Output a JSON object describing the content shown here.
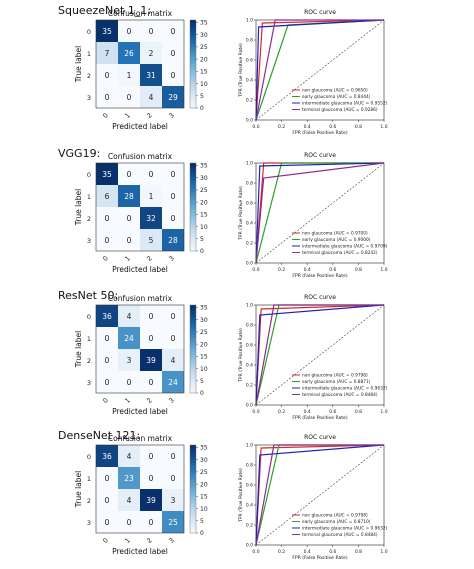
{
  "chart_data": [
    {
      "model": "SqueezeNet 1_1:",
      "confusion_matrix": {
        "type": "heatmap",
        "title": "Confusion matrix",
        "xlabel": "Predicted label",
        "ylabel": "True label",
        "labels": [
          "0",
          "1",
          "2",
          "3"
        ],
        "matrix": [
          [
            35,
            0,
            0,
            0
          ],
          [
            7,
            26,
            2,
            0
          ],
          [
            0,
            1,
            31,
            0
          ],
          [
            0,
            0,
            4,
            29
          ]
        ],
        "colorbar_ticks": [
          "35",
          "30",
          "25",
          "20",
          "15",
          "10",
          "5",
          "0"
        ],
        "vmax": 35
      },
      "roc": {
        "type": "line",
        "title": "ROC curve",
        "xlabel": "FPR (False Positive Rate)",
        "ylabel": "TPR (True Positive Rate)",
        "xticks": [
          "0.0",
          "0.2",
          "0.4",
          "0.6",
          "0.8",
          "1.0"
        ],
        "yticks": [
          "0.0",
          "0.2",
          "0.4",
          "0.6",
          "0.8",
          "1.0"
        ],
        "legend_position": "lower right",
        "series": [
          {
            "name": "non glaucoma (AUC = 0.9650)",
            "color": "#d62728",
            "points": [
              [
                0,
                0
              ],
              [
                0.05,
                0.97
              ],
              [
                1,
                1
              ]
            ]
          },
          {
            "name": "early glaucoma (AUC = 0.8444)",
            "color": "#2ca02c",
            "points": [
              [
                0,
                0
              ],
              [
                0.25,
                0.95
              ],
              [
                1,
                1
              ]
            ]
          },
          {
            "name": "intermediate glaucoma (AUC = 0.9552)",
            "color": "#1f1fbf",
            "points": [
              [
                0,
                0
              ],
              [
                0.02,
                0.93
              ],
              [
                1,
                1
              ]
            ]
          },
          {
            "name": "terminal glaucoma (AUC = 0.9286)",
            "color": "#8c2d8c",
            "points": [
              [
                0,
                0
              ],
              [
                0.15,
                1.0
              ],
              [
                1,
                1
              ]
            ]
          }
        ]
      }
    },
    {
      "model": "VGG19:",
      "confusion_matrix": {
        "type": "heatmap",
        "title": "Confusion matrix",
        "xlabel": "Predicted label",
        "ylabel": "True label",
        "labels": [
          "0",
          "1",
          "2",
          "3"
        ],
        "matrix": [
          [
            35,
            0,
            0,
            0
          ],
          [
            6,
            28,
            1,
            0
          ],
          [
            0,
            0,
            32,
            0
          ],
          [
            0,
            0,
            5,
            28
          ]
        ],
        "colorbar_ticks": [
          "35",
          "30",
          "25",
          "20",
          "15",
          "10",
          "5",
          "0"
        ],
        "vmax": 35
      },
      "roc": {
        "type": "line",
        "title": "ROC curve",
        "xlabel": "FPR (False Positive Rate)",
        "ylabel": "TPR (True Positive Rate)",
        "xticks": [
          "0.0",
          "0.2",
          "0.4",
          "0.6",
          "0.8",
          "1.0"
        ],
        "yticks": [
          "0.0",
          "0.2",
          "0.4",
          "0.6",
          "0.8",
          "1.0"
        ],
        "legend_position": "lower right",
        "series": [
          {
            "name": "non glaucoma (AUC = 0.9700)",
            "color": "#d62728",
            "points": [
              [
                0,
                0
              ],
              [
                0.06,
                1.0
              ],
              [
                1,
                1
              ]
            ]
          },
          {
            "name": "early glaucoma (AUC = 0.9000)",
            "color": "#2ca02c",
            "points": [
              [
                0,
                0
              ],
              [
                0.2,
                1.0
              ],
              [
                1,
                1
              ]
            ]
          },
          {
            "name": "intermediate glaucoma (AUC = 0.9709)",
            "color": "#1f1fbf",
            "points": [
              [
                0,
                0
              ],
              [
                0.03,
                0.97
              ],
              [
                1,
                1
              ]
            ]
          },
          {
            "name": "terminal glaucoma (AUC = 0.8242)",
            "color": "#8c2d8c",
            "points": [
              [
                0,
                0
              ],
              [
                0.06,
                0.85
              ],
              [
                1,
                1
              ]
            ]
          }
        ]
      }
    },
    {
      "model": "ResNet 50:",
      "confusion_matrix": {
        "type": "heatmap",
        "title": "Confusion matrix",
        "xlabel": "Predicted label",
        "ylabel": "True label",
        "labels": [
          "0",
          "1",
          "2",
          "3"
        ],
        "matrix": [
          [
            36,
            4,
            0,
            0
          ],
          [
            0,
            24,
            0,
            0
          ],
          [
            0,
            3,
            39,
            4
          ],
          [
            0,
            0,
            0,
            24
          ]
        ],
        "colorbar_ticks": [
          "35",
          "30",
          "25",
          "20",
          "15",
          "10",
          "5",
          "0"
        ],
        "vmax": 39
      },
      "roc": {
        "type": "line",
        "title": "ROC curve",
        "xlabel": "FPR (False Positive Rate)",
        "ylabel": "TPR (True Positive Rate)",
        "xticks": [
          "0.0",
          "0.2",
          "0.4",
          "0.6",
          "0.8",
          "1.0"
        ],
        "yticks": [
          "0.0",
          "0.2",
          "0.4",
          "0.6",
          "0.8",
          "1.0"
        ],
        "legend_position": "lower right",
        "series": [
          {
            "name": "non glaucoma (AUC = 0.9798)",
            "color": "#d62728",
            "points": [
              [
                0,
                0
              ],
              [
                0.04,
                0.96
              ],
              [
                1,
                1
              ]
            ]
          },
          {
            "name": "early glaucoma (AUC = 0.8871)",
            "color": "#2ca02c",
            "points": [
              [
                0,
                0
              ],
              [
                0.18,
                1.0
              ],
              [
                1,
                1
              ]
            ]
          },
          {
            "name": "intermediate glaucoma (AUC = 0.9632)",
            "color": "#1f1fbf",
            "points": [
              [
                0,
                0
              ],
              [
                0.03,
                0.9
              ],
              [
                1,
                1
              ]
            ]
          },
          {
            "name": "terminal glaucoma (AUC = 0.8484)",
            "color": "#8c2d8c",
            "points": [
              [
                0,
                0
              ],
              [
                0.14,
                1.0
              ],
              [
                1,
                1
              ]
            ]
          }
        ]
      }
    },
    {
      "model": "DenseNet 121:",
      "confusion_matrix": {
        "type": "heatmap",
        "title": "Confusion matrix",
        "xlabel": "Predicted label",
        "ylabel": "True label",
        "labels": [
          "0",
          "1",
          "2",
          "3"
        ],
        "matrix": [
          [
            36,
            4,
            0,
            0
          ],
          [
            0,
            23,
            0,
            0
          ],
          [
            0,
            4,
            39,
            3
          ],
          [
            0,
            0,
            0,
            25
          ]
        ],
        "colorbar_ticks": [
          "35",
          "30",
          "25",
          "20",
          "15",
          "10",
          "5",
          "0"
        ],
        "vmax": 39
      },
      "roc": {
        "type": "line",
        "title": "ROC curve",
        "xlabel": "FPR (False Positive Rate)",
        "ylabel": "TPR (True Positive Rate)",
        "xticks": [
          "0.0",
          "0.2",
          "0.4",
          "0.6",
          "0.8",
          "1.0"
        ],
        "yticks": [
          "0.0",
          "0.2",
          "0.4",
          "0.6",
          "0.8",
          "1.0"
        ],
        "legend_position": "lower right",
        "series": [
          {
            "name": "non glaucoma (AUC = 0.9798)",
            "color": "#d62728",
            "points": [
              [
                0,
                0
              ],
              [
                0.04,
                0.97
              ],
              [
                1,
                1
              ]
            ]
          },
          {
            "name": "early glaucoma (AUC = 0.8710)",
            "color": "#2ca02c",
            "points": [
              [
                0,
                0
              ],
              [
                0.18,
                1.0
              ],
              [
                1,
                1
              ]
            ]
          },
          {
            "name": "intermediate glaucoma (AUC = 0.9632)",
            "color": "#1f1fbf",
            "points": [
              [
                0,
                0
              ],
              [
                0.03,
                0.9
              ],
              [
                1,
                1
              ]
            ]
          },
          {
            "name": "terminal glaucoma (AUC = 0.8484)",
            "color": "#8c2d8c",
            "points": [
              [
                0,
                0
              ],
              [
                0.14,
                1.0
              ],
              [
                1,
                1
              ]
            ]
          }
        ]
      }
    }
  ]
}
